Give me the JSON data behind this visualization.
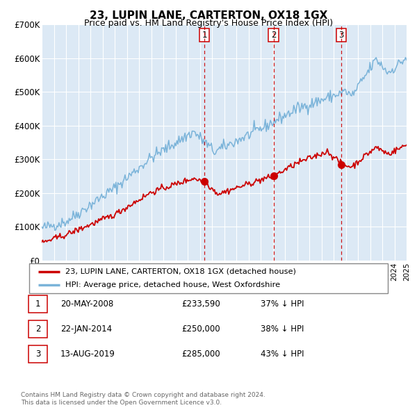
{
  "title": "23, LUPIN LANE, CARTERTON, OX18 1GX",
  "subtitle": "Price paid vs. HM Land Registry's House Price Index (HPI)",
  "background_color": "#ffffff",
  "plot_bg_color": "#dce9f5",
  "grid_color": "#ffffff",
  "ylim": [
    0,
    700000
  ],
  "yticks": [
    0,
    100000,
    200000,
    300000,
    400000,
    500000,
    600000,
    700000
  ],
  "ytick_labels": [
    "£0",
    "£100K",
    "£200K",
    "£300K",
    "£400K",
    "£500K",
    "£600K",
    "£700K"
  ],
  "transactions": [
    {
      "label": "1",
      "date": "20-MAY-2008",
      "price": "£233,590",
      "pct": "37% ↓ HPI",
      "x_year": 2008.38,
      "y_val": 233590
    },
    {
      "label": "2",
      "date": "22-JAN-2014",
      "price": "£250,000",
      "pct": "38% ↓ HPI",
      "x_year": 2014.06,
      "y_val": 250000
    },
    {
      "label": "3",
      "date": "13-AUG-2019",
      "price": "£285,000",
      "pct": "43% ↓ HPI",
      "x_year": 2019.62,
      "y_val": 285000
    }
  ],
  "legend_line1": "23, LUPIN LANE, CARTERTON, OX18 1GX (detached house)",
  "legend_line2": "HPI: Average price, detached house, West Oxfordshire",
  "footer1": "Contains HM Land Registry data © Crown copyright and database right 2024.",
  "footer2": "This data is licensed under the Open Government Licence v3.0.",
  "red_color": "#cc0000",
  "blue_color": "#7ab3d9",
  "dashed_line_color": "#cc0000",
  "xlim_start": 1995,
  "xlim_end": 2025,
  "noise_seed": 42
}
